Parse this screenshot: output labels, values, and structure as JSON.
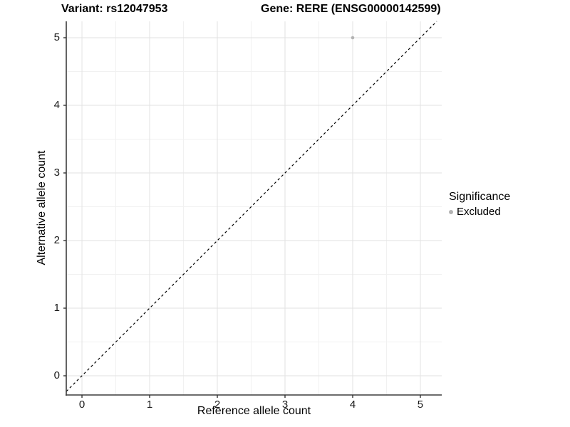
{
  "titles": {
    "left": "Variant: rs12047953",
    "right": "Gene: RERE (ENSG00000142599)"
  },
  "axes": {
    "x_label": "Reference allele count",
    "y_label": "Alternative allele count"
  },
  "legend": {
    "title": "Significance",
    "items": [
      {
        "label": "Excluded",
        "color": "#b3b3b3"
      }
    ]
  },
  "colors": {
    "grid_major": "#e2e2e2",
    "grid_minor": "#f1f1f1",
    "axis_line": "#3c3c3c",
    "tick_mark": "#333333",
    "reference_line": "#000000",
    "point": "#b3b3b3",
    "background": "#ffffff"
  },
  "chart_data": {
    "type": "scatter",
    "title": "Variant: rs12047953 | Gene: RERE (ENSG00000142599)",
    "xlabel": "Reference allele count",
    "ylabel": "Alternative allele count",
    "xlim": [
      -0.232,
      5.316
    ],
    "ylim": [
      -0.284,
      5.242
    ],
    "x_ticks": [
      0,
      1,
      2,
      3,
      4,
      5
    ],
    "y_ticks": [
      0,
      1,
      2,
      3,
      4,
      5
    ],
    "minor_gridlines": true,
    "grid": true,
    "legend_position": "right",
    "legend_title": "Significance",
    "series": [
      {
        "name": "Excluded",
        "color": "#b3b3b3",
        "points": [
          {
            "x": 4,
            "y": 5
          }
        ]
      }
    ],
    "reference_line": {
      "kind": "identity",
      "slope": 1,
      "intercept": 0,
      "style": "dashed",
      "color": "#000000"
    }
  }
}
